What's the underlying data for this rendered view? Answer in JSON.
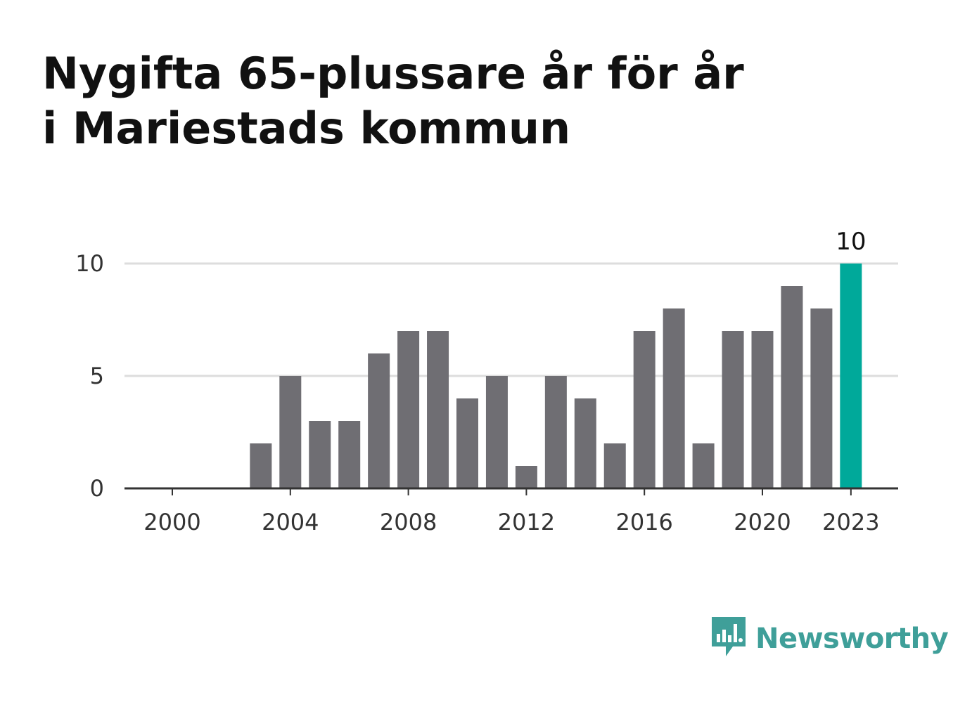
{
  "title": "Nygifta 65-plussare år för år i Mariestads kommun",
  "logo": {
    "text": "Newsworthy",
    "icon": "newsworthy-bar-chart-bubble-icon"
  },
  "colors": {
    "bar": "#6f6e73",
    "highlight": "#00a99a",
    "grid": "#dddddd",
    "axis": "#333333",
    "brand": "#3f9f99"
  },
  "chart_data": {
    "type": "bar",
    "title": "Nygifta 65-plussare år för år i Mariestads kommun",
    "xlabel": "",
    "ylabel": "",
    "categories": [
      2000,
      2001,
      2002,
      2003,
      2004,
      2005,
      2006,
      2007,
      2008,
      2009,
      2010,
      2011,
      2012,
      2013,
      2014,
      2015,
      2016,
      2017,
      2018,
      2019,
      2020,
      2021,
      2022,
      2023
    ],
    "values": [
      0,
      0,
      0,
      2,
      5,
      3,
      3,
      6,
      7,
      7,
      4,
      5,
      1,
      5,
      4,
      2,
      7,
      8,
      2,
      7,
      7,
      9,
      8,
      10
    ],
    "highlight_category": 2023,
    "highlight_label": "10",
    "x_tick_labels": [
      "2000",
      "2004",
      "2008",
      "2012",
      "2016",
      "2020",
      "2023"
    ],
    "y_ticks": [
      0,
      5,
      10
    ],
    "y_tick_labels": [
      "0",
      "5",
      "10"
    ],
    "ylim": [
      0,
      10
    ],
    "grid": true,
    "legend": "none"
  }
}
